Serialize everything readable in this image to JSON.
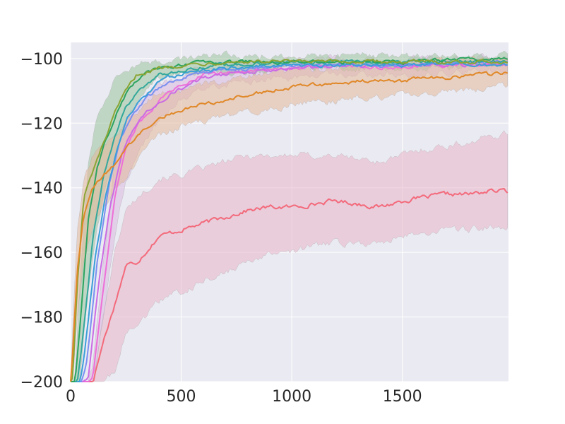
{
  "chart_data": {
    "type": "line",
    "title": "",
    "xlabel": "",
    "ylabel": "",
    "xlim": [
      0,
      1980
    ],
    "ylim": [
      -200,
      -95
    ],
    "x_ticks": [
      0,
      500,
      1000,
      1500
    ],
    "y_ticks": [
      -200,
      -180,
      -160,
      -140,
      -120,
      -100
    ],
    "x_tick_labels": [
      "0",
      "500",
      "1000",
      "1500"
    ],
    "y_tick_labels": [
      "−200",
      "−180",
      "−160",
      "−140",
      "−120",
      "−100"
    ],
    "grid": true,
    "legend": "none",
    "background_color": "#eaeaf2",
    "grid_color": "#ffffff",
    "series": [
      {
        "color": "#f36a7b",
        "band_color": "#e8b4c8",
        "x": [
          0,
          100,
          150,
          200,
          250,
          300,
          400,
          500,
          600,
          700,
          800,
          900,
          1000,
          1100,
          1200,
          1300,
          1400,
          1500,
          1600,
          1700,
          1800,
          1900,
          1980
        ],
        "y": [
          -200,
          -200,
          -187,
          -176,
          -164,
          -163,
          -155,
          -153,
          -151,
          -149,
          -147,
          -146,
          -146,
          -145,
          -144,
          -145,
          -146,
          -144,
          -143,
          -142,
          -142,
          -141,
          -141
        ],
        "lower": [
          -200,
          -200,
          -200,
          -197,
          -185,
          -183,
          -175,
          -172,
          -169,
          -166,
          -163,
          -161,
          -160,
          -158,
          -157,
          -157,
          -157,
          -155,
          -154,
          -153,
          -153,
          -152,
          -152
        ],
        "upper": [
          -200,
          -200,
          -178,
          -160,
          -147,
          -143,
          -137,
          -136,
          -134,
          -132,
          -130,
          -130,
          -130,
          -130,
          -130,
          -131,
          -132,
          -130,
          -128,
          -127,
          -126,
          -124,
          -123
        ]
      },
      {
        "color": "#ee6fd8",
        "band_color": "#d8b9de",
        "x": [
          0,
          80,
          100,
          150,
          200,
          250,
          300,
          350,
          400,
          500,
          600,
          800,
          1000,
          1200,
          1400,
          1600,
          1800,
          1980
        ],
        "y": [
          -200,
          -200,
          -199,
          -170,
          -143,
          -128,
          -121,
          -117,
          -113,
          -108,
          -105,
          -104,
          -103,
          -102,
          -103,
          -102,
          -102,
          -101
        ],
        "lower": [
          -200,
          -200,
          -200,
          -180,
          -155,
          -138,
          -130,
          -124,
          -119,
          -112,
          -109,
          -107,
          -106,
          -105,
          -105,
          -105,
          -104,
          -104
        ],
        "upper": [
          -200,
          -200,
          -195,
          -162,
          -133,
          -120,
          -114,
          -110,
          -108,
          -105,
          -102,
          -101,
          -101,
          -100,
          -101,
          -100,
          -100,
          -99
        ]
      },
      {
        "color": "#cb6be4",
        "x": [
          0,
          60,
          80,
          130,
          180,
          230,
          280,
          350,
          450,
          600,
          800,
          1000,
          1500,
          1980
        ],
        "y": [
          -200,
          -200,
          -198,
          -168,
          -145,
          -130,
          -122,
          -116,
          -111,
          -106,
          -104,
          -103,
          -102,
          -102
        ]
      },
      {
        "color": "#7b8ff1",
        "x": [
          0,
          50,
          70,
          120,
          170,
          220,
          280,
          350,
          450,
          600,
          800,
          1000,
          1500,
          1980
        ],
        "y": [
          -200,
          -200,
          -196,
          -163,
          -140,
          -126,
          -117,
          -112,
          -107,
          -104,
          -103,
          -102,
          -102,
          -101
        ]
      },
      {
        "color": "#3b9fd8",
        "x": [
          0,
          40,
          60,
          110,
          160,
          210,
          260,
          330,
          420,
          550,
          700,
          1000,
          1500,
          1980
        ],
        "y": [
          -200,
          -200,
          -193,
          -162,
          -142,
          -128,
          -118,
          -112,
          -106,
          -104,
          -103,
          -102,
          -102,
          -102
        ]
      },
      {
        "color": "#32a89b",
        "x": [
          0,
          30,
          50,
          100,
          150,
          200,
          250,
          320,
          400,
          550,
          700,
          1000,
          1500,
          1980
        ],
        "y": [
          -200,
          -200,
          -190,
          -156,
          -136,
          -124,
          -115,
          -109,
          -105,
          -103,
          -102,
          -101,
          -101,
          -101
        ]
      },
      {
        "color": "#2ca45f",
        "band_color": "#9cc49e",
        "x": [
          0,
          20,
          40,
          80,
          120,
          160,
          200,
          250,
          300,
          350,
          400,
          500,
          600,
          800,
          1000,
          1500,
          1980
        ],
        "y": [
          -200,
          -200,
          -185,
          -150,
          -134,
          -125,
          -118,
          -111,
          -107,
          -104,
          -103,
          -102,
          -101,
          -101,
          -101,
          -101,
          -100
        ],
        "lower": [
          -200,
          -200,
          -200,
          -172,
          -152,
          -140,
          -130,
          -120,
          -113,
          -109,
          -106,
          -105,
          -104,
          -104,
          -103,
          -103,
          -102
        ],
        "upper": [
          -200,
          -200,
          -172,
          -133,
          -118,
          -112,
          -106,
          -103,
          -102,
          -101,
          -101,
          -100,
          -99,
          -99,
          -99,
          -99,
          -99
        ]
      },
      {
        "color": "#8aa534",
        "x": [
          0,
          10,
          30,
          60,
          100,
          150,
          200,
          250,
          300,
          400,
          500,
          700,
          1000,
          1500,
          1980
        ],
        "y": [
          -200,
          -198,
          -170,
          -143,
          -135,
          -126,
          -117,
          -110,
          -105,
          -103,
          -102,
          -101,
          -101,
          -101,
          -101
        ]
      },
      {
        "color": "#e08828",
        "band_color": "#e4b89a",
        "x": [
          0,
          10,
          30,
          60,
          100,
          150,
          200,
          250,
          300,
          350,
          400,
          500,
          600,
          700,
          800,
          900,
          1000,
          1100,
          1200,
          1300,
          1400,
          1500,
          1600,
          1700,
          1800,
          1900,
          1980
        ],
        "y": [
          -200,
          -190,
          -165,
          -148,
          -140,
          -136,
          -133,
          -128,
          -124,
          -121,
          -118,
          -116,
          -114,
          -113,
          -111,
          -110,
          -109,
          -108,
          -108,
          -107,
          -107,
          -107,
          -106,
          -106,
          -105,
          -105,
          -104
        ],
        "lower": [
          -200,
          -200,
          -180,
          -162,
          -152,
          -146,
          -142,
          -137,
          -132,
          -127,
          -124,
          -121,
          -119,
          -118,
          -117,
          -116,
          -114,
          -113,
          -113,
          -112,
          -112,
          -111,
          -111,
          -110,
          -110,
          -109,
          -108
        ],
        "upper": [
          -200,
          -182,
          -152,
          -136,
          -130,
          -127,
          -124,
          -119,
          -116,
          -113,
          -110,
          -110,
          -108,
          -107,
          -106,
          -104,
          -104,
          -103,
          -103,
          -102,
          -102,
          -102,
          -101,
          -101,
          -100,
          -100,
          -99
        ]
      }
    ]
  }
}
